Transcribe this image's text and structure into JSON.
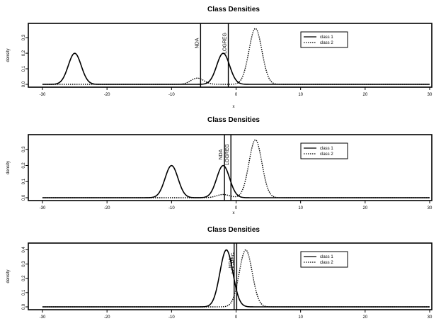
{
  "chart_data": [
    {
      "type": "line",
      "title": "Class Densities",
      "xlabel": "x",
      "ylabel": "density",
      "xlim": [
        -30,
        30
      ],
      "ylim": [
        0,
        0.35
      ],
      "x_ticks": [
        -30,
        -20,
        -10,
        0,
        10,
        20,
        30
      ],
      "y_ticks": [
        0.0,
        0.1,
        0.2,
        0.3
      ],
      "grid": false,
      "legend_position": "top-right",
      "series": [
        {
          "name": "class 1",
          "style": "solid",
          "components": [
            {
              "mean": -25,
              "sd": 1.0,
              "weight": 0.5
            },
            {
              "mean": -2,
              "sd": 1.0,
              "weight": 0.5
            },
            {
              "mean": 3,
              "sd": 1.0,
              "weight": 0.0
            }
          ]
        },
        {
          "name": "class 2",
          "style": "dotted",
          "components": [
            {
              "mean": -25,
              "sd": 1.0,
              "weight": 0.0
            },
            {
              "mean": -6,
              "sd": 1.0,
              "weight": 0.1
            },
            {
              "mean": 3,
              "sd": 1.0,
              "weight": 0.9
            }
          ]
        }
      ],
      "vlines": [
        {
          "label": "NDA",
          "x": -5.5
        },
        {
          "label": "LOGREG",
          "x": -1.2
        }
      ]
    },
    {
      "type": "line",
      "title": "Class Densities",
      "xlabel": "x",
      "ylabel": "density",
      "xlim": [
        -30,
        30
      ],
      "ylim": [
        0,
        0.35
      ],
      "x_ticks": [
        -30,
        -20,
        -10,
        0,
        10,
        20,
        30
      ],
      "y_ticks": [
        0.0,
        0.1,
        0.2,
        0.3
      ],
      "grid": false,
      "legend_position": "top-right",
      "series": [
        {
          "name": "class 1",
          "style": "solid",
          "components": [
            {
              "mean": -10,
              "sd": 1.0,
              "weight": 0.5
            },
            {
              "mean": -2,
              "sd": 1.0,
              "weight": 0.5
            }
          ]
        },
        {
          "name": "class 2",
          "style": "dotted",
          "components": [
            {
              "mean": -2,
              "sd": 1.0,
              "weight": 0.05
            },
            {
              "mean": 3,
              "sd": 1.0,
              "weight": 0.9
            }
          ]
        }
      ],
      "vlines": [
        {
          "label": "NDA",
          "x": -1.8
        },
        {
          "label": "LOGREG",
          "x": -0.8
        }
      ]
    },
    {
      "type": "line",
      "title": "Class Densities",
      "xlabel": "",
      "ylabel": "density",
      "xlim": [
        -30,
        30
      ],
      "ylim": [
        0,
        0.4
      ],
      "x_ticks": [
        -30,
        -20,
        -10,
        0,
        10,
        20,
        30
      ],
      "y_ticks": [
        0.0,
        0.1,
        0.2,
        0.3,
        0.4
      ],
      "grid": false,
      "legend_position": "top-right",
      "series": [
        {
          "name": "class 1",
          "style": "solid",
          "components": [
            {
              "mean": -1.5,
              "sd": 1.0,
              "weight": 1.0
            }
          ]
        },
        {
          "name": "class 2",
          "style": "dotted",
          "components": [
            {
              "mean": 1.5,
              "sd": 1.0,
              "weight": 1.0
            }
          ]
        }
      ],
      "vlines": [
        {
          "label": "NDA",
          "x": -0.3
        },
        {
          "label": "LOGREG",
          "x": 0.1
        }
      ]
    }
  ]
}
